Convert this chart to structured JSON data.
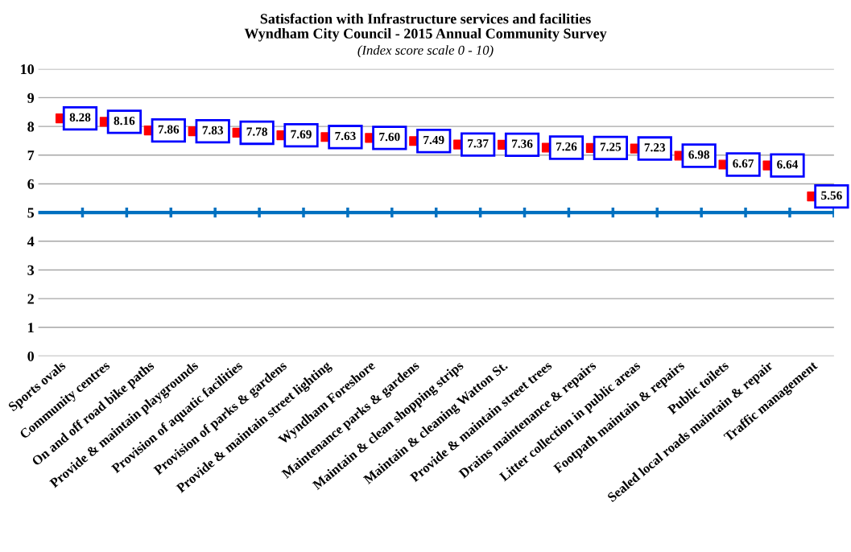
{
  "chart_data": {
    "type": "scatter",
    "title": "Satisfaction with Infrastructure services and facilities\nWyndham City Council - 2015 Annual Community Survey",
    "subtitle": "(Index score scale 0 - 10)",
    "categories": [
      "Sports ovals",
      "Community centres",
      "On and off road bike paths",
      "Provide & maintain playgrounds",
      "Provision of aquatic facilities",
      "Provision of parks & gardens",
      "Provide & maintain street lighting",
      "Wyndham Foreshore",
      "Maintenance parks & gardens",
      "Maintain & clean shopping strips",
      "Maintain & cleaning Watton St.",
      "Provide & maintain street trees",
      "Drains maintenance & repairs",
      "Litter collection in public areas",
      "Footpath maintain & repairs",
      "Public toilets",
      "Sealed local roads maintain & repair",
      "Traffic management"
    ],
    "values": [
      8.28,
      8.16,
      7.86,
      7.83,
      7.78,
      7.69,
      7.63,
      7.6,
      7.49,
      7.37,
      7.36,
      7.26,
      7.25,
      7.23,
      6.98,
      6.67,
      6.64,
      5.56
    ],
    "value_labels": [
      "8.28",
      "8.16",
      "7.86",
      "7.83",
      "7.78",
      "7.69",
      "7.63",
      "7.60",
      "7.49",
      "7.37",
      "7.36",
      "7.26",
      "7.25",
      "7.23",
      "6.98",
      "6.67",
      "6.64",
      "5.56"
    ],
    "color": "#ff0000",
    "marker": "square",
    "ylim": [
      0,
      10
    ],
    "yticks": [
      0,
      1,
      2,
      3,
      4,
      5,
      6,
      7,
      8,
      9,
      10
    ],
    "grid": "y",
    "ref_lines": [
      {
        "axis": "y",
        "value": 5,
        "color": "#0070c0"
      }
    ]
  }
}
